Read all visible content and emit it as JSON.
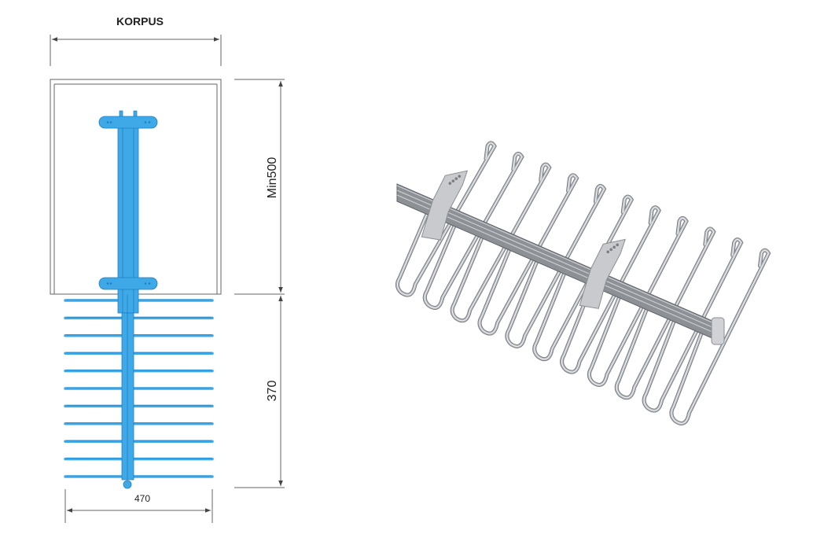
{
  "drawing": {
    "title": "KORPUS",
    "height_label": "Min500",
    "extension_label": "370",
    "width_label": "470",
    "rod_count": 11
  },
  "photo": {
    "hook_count": 11
  },
  "colors": {
    "part_blue": "#3fa9e8",
    "part_blue_dark": "#1d7fc4",
    "line": "#555555",
    "chrome": "#b9bcc0",
    "rail": "#8d9196"
  }
}
